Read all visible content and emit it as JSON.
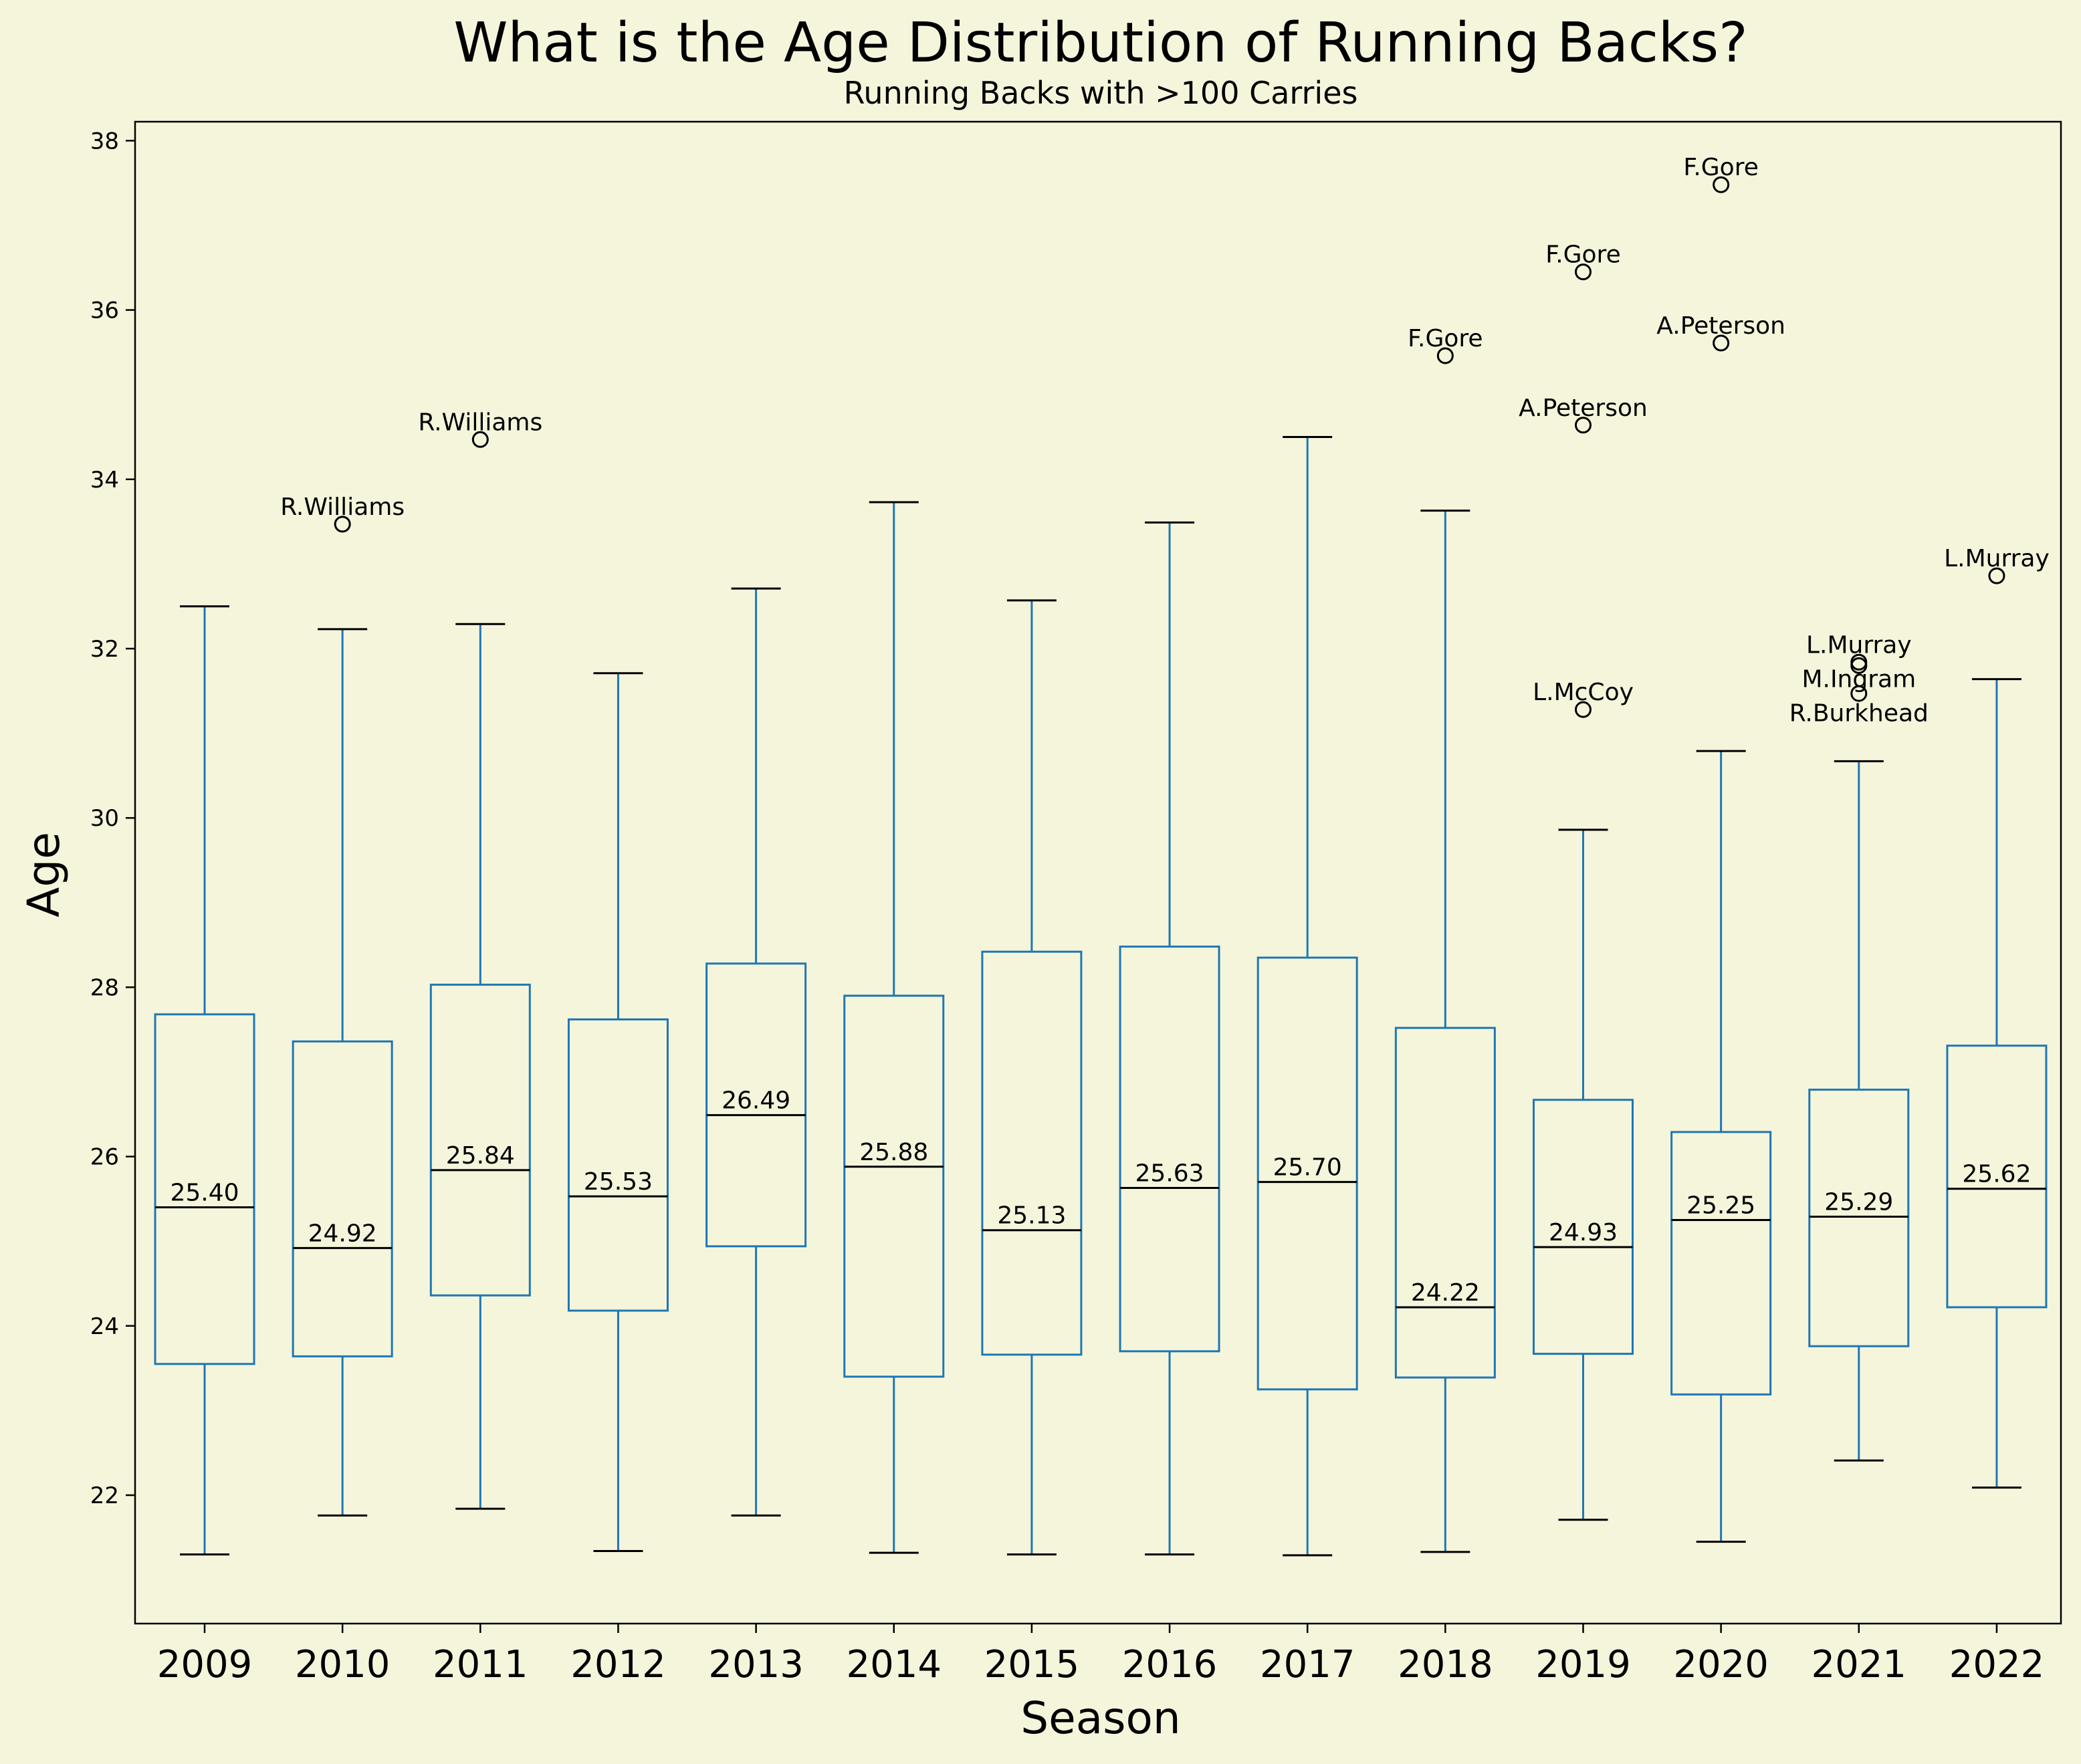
{
  "chart_data": {
    "type": "box",
    "title": "What is the Age Distribution of Running Backs?",
    "subtitle": "Running Backs with >100 Carries",
    "xlabel": "Season",
    "ylabel": "Age",
    "ylim": [
      20.5,
      38.3
    ],
    "yticks": [
      22,
      24,
      26,
      28,
      30,
      32,
      34,
      36,
      38
    ],
    "grid": false,
    "colors": {
      "background": "#f5f5dc",
      "box": "#1f77b4",
      "median": "#000000",
      "caps": "#000000"
    },
    "categories": [
      "2009",
      "2010",
      "2011",
      "2012",
      "2013",
      "2014",
      "2015",
      "2016",
      "2017",
      "2018",
      "2019",
      "2020",
      "2021",
      "2022"
    ],
    "boxes": [
      {
        "season": "2009",
        "min": 21.3,
        "q1": 23.55,
        "median": 25.4,
        "median_label": "25.40",
        "q3": 27.68,
        "max": 32.5,
        "outliers": []
      },
      {
        "season": "2010",
        "min": 21.76,
        "q1": 23.64,
        "median": 24.92,
        "median_label": "24.92",
        "q3": 27.36,
        "max": 32.23,
        "outliers": [
          {
            "name": "R.Williams",
            "age": 33.47
          }
        ]
      },
      {
        "season": "2011",
        "min": 21.84,
        "q1": 24.36,
        "median": 25.84,
        "median_label": "25.84",
        "q3": 28.03,
        "max": 32.29,
        "outliers": [
          {
            "name": "R.Williams",
            "age": 34.47
          }
        ]
      },
      {
        "season": "2012",
        "min": 21.34,
        "q1": 24.18,
        "median": 25.53,
        "median_label": "25.53",
        "q3": 27.62,
        "max": 31.71,
        "outliers": []
      },
      {
        "season": "2013",
        "min": 21.76,
        "q1": 24.94,
        "median": 26.49,
        "median_label": "26.49",
        "q3": 28.28,
        "max": 32.71,
        "outliers": []
      },
      {
        "season": "2014",
        "min": 21.32,
        "q1": 23.4,
        "median": 25.88,
        "median_label": "25.88",
        "q3": 27.9,
        "max": 33.73,
        "outliers": []
      },
      {
        "season": "2015",
        "min": 21.3,
        "q1": 23.66,
        "median": 25.13,
        "median_label": "25.13",
        "q3": 28.42,
        "max": 32.57,
        "outliers": []
      },
      {
        "season": "2016",
        "min": 21.3,
        "q1": 23.7,
        "median": 25.63,
        "median_label": "25.63",
        "q3": 28.48,
        "max": 33.49,
        "outliers": []
      },
      {
        "season": "2017",
        "min": 21.29,
        "q1": 23.25,
        "median": 25.7,
        "median_label": "25.70",
        "q3": 28.35,
        "max": 34.5,
        "outliers": []
      },
      {
        "season": "2018",
        "min": 21.33,
        "q1": 23.39,
        "median": 24.22,
        "median_label": "24.22",
        "q3": 27.52,
        "max": 33.63,
        "outliers": [
          {
            "name": "F.Gore",
            "age": 35.46
          }
        ]
      },
      {
        "season": "2019",
        "min": 21.71,
        "q1": 23.67,
        "median": 24.93,
        "median_label": "24.93",
        "q3": 26.67,
        "max": 29.86,
        "outliers": [
          {
            "name": "L.McCoy",
            "age": 31.28
          },
          {
            "name": "A.Peterson",
            "age": 34.64
          },
          {
            "name": "F.Gore",
            "age": 36.45
          }
        ]
      },
      {
        "season": "2020",
        "min": 21.45,
        "q1": 23.19,
        "median": 25.25,
        "median_label": "25.25",
        "q3": 26.29,
        "max": 30.79,
        "outliers": [
          {
            "name": "A.Peterson",
            "age": 35.61
          },
          {
            "name": "F.Gore",
            "age": 37.48
          }
        ]
      },
      {
        "season": "2021",
        "min": 22.41,
        "q1": 23.76,
        "median": 25.29,
        "median_label": "25.29",
        "q3": 26.79,
        "max": 30.67,
        "outliers": [
          {
            "name": "L.Murray",
            "age": 31.84
          },
          {
            "name": "M.Ingram",
            "age": 31.8
          },
          {
            "name": "R.Burkhead",
            "age": 31.47
          }
        ]
      },
      {
        "season": "2022",
        "min": 22.09,
        "q1": 24.22,
        "median": 25.62,
        "median_label": "25.62",
        "q3": 27.31,
        "max": 31.64,
        "outliers": [
          {
            "name": "L.Murray",
            "age": 32.86
          }
        ]
      }
    ]
  }
}
